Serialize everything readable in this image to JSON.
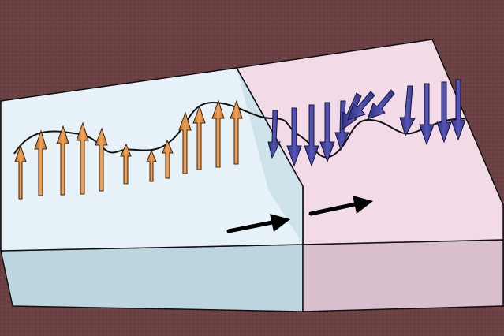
{
  "diagram": {
    "background_color": "#6e4345",
    "left_domain": {
      "face_color": "#e6f2f8",
      "arrow_color": "#d9883e",
      "arrow_orientation": "up",
      "moment_count": 13
    },
    "right_domain": {
      "face_color": "#f2dbe7",
      "arrow_color": "#3c3d92",
      "arrow_orientation": "down",
      "moment_count": 16
    },
    "direction_arrows": [
      {
        "name": "left-motion-arrow",
        "direction": "right",
        "color": "#000000"
      },
      {
        "name": "right-motion-arrow",
        "direction": "right",
        "color": "#000000"
      }
    ]
  }
}
